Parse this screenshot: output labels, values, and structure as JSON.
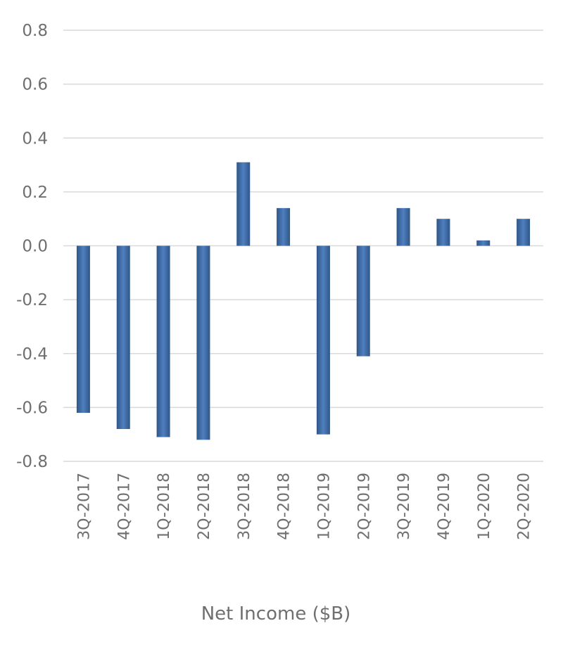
{
  "chart_data": {
    "type": "bar",
    "title": "",
    "xlabel": "Net Income ($B)",
    "ylabel": "",
    "categories": [
      "3Q-2017",
      "4Q-2017",
      "1Q-2018",
      "2Q-2018",
      "3Q-2018",
      "4Q-2018",
      "1Q-2019",
      "2Q-2019",
      "3Q-2019",
      "4Q-2019",
      "1Q-2020",
      "2Q-2020"
    ],
    "values": [
      -0.62,
      -0.68,
      -0.71,
      -0.72,
      0.31,
      0.14,
      -0.7,
      -0.41,
      0.14,
      0.1,
      0.02,
      0.1
    ],
    "ylim": [
      -0.8,
      0.8
    ],
    "yticks": [
      "0.8",
      "0.6",
      "0.4",
      "0.2",
      "0.0",
      "-0.2",
      "-0.4",
      "-0.6",
      "-0.8"
    ],
    "grid": true,
    "legend": "none",
    "colors": {
      "bar_edge": "#2f5687",
      "bar_center": "#4f7fbf",
      "grid": "#d9d9d9",
      "text": "#6f6f6f"
    }
  }
}
